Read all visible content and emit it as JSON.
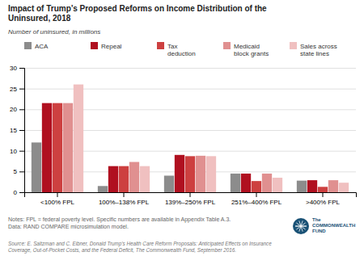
{
  "chart_data": {
    "type": "bar",
    "title": "Impact of Trump’s Proposed Reforms on Income Distribution of the\nUninsured, 2018",
    "subtitle": "Number of uninsured, in millions",
    "categories": [
      "<100% FPL",
      "100%–138% FPL",
      "139%–250% FPL",
      "251%–400% FPL",
      ">400% FPL"
    ],
    "series": [
      {
        "name": "ACA",
        "color": "#8c8c8c",
        "values": [
          12.0,
          1.5,
          4.0,
          4.5,
          2.8
        ]
      },
      {
        "name": "Repeal",
        "color": "#b01020",
        "values": [
          21.5,
          6.3,
          9.0,
          4.5,
          2.9
        ]
      },
      {
        "name": "Tax\ndeduction",
        "color": "#cd4040",
        "values": [
          21.5,
          6.3,
          8.7,
          2.7,
          1.3
        ]
      },
      {
        "name": "Medicaid\nblock grants",
        "color": "#e09090",
        "values": [
          21.5,
          7.3,
          8.8,
          4.5,
          2.9
        ]
      },
      {
        "name": "Sales across\nstate lines",
        "color": "#f0c0c0",
        "values": [
          26.0,
          6.3,
          8.7,
          3.5,
          2.3
        ]
      }
    ],
    "ylim": [
      0,
      30
    ],
    "yticks": [
      0,
      5,
      10,
      15,
      20,
      25,
      30
    ],
    "grid": true,
    "notes": "Notes: FPL = federal poverty level. Specific numbers are available in Appendix Table A.3.\nData: RAND COMPARE microsimulation model.",
    "source": "Source: E. Saltzman and C. Eibner, Donald Trump’s Health Care Reform Proposals: Anticipated Effects on Insurance\nCoverage, Out-of-Pocket Costs, and the Federal Deficit, The Commonwealth Fund, September 2016.",
    "logo_text": "The\nCOMMONWEALTH\nFUND"
  }
}
